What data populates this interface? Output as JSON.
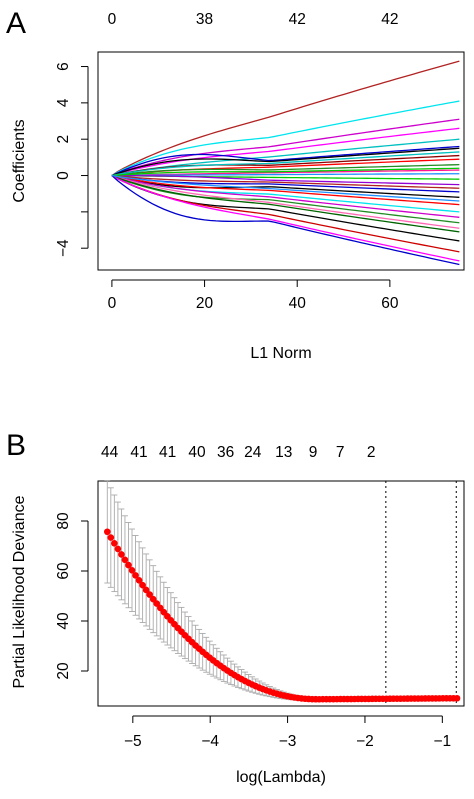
{
  "chart_data": [
    {
      "type": "line",
      "panel_label": "A",
      "xlabel": "L1 Norm",
      "ylabel": "Coefficients",
      "xlim": [
        -3,
        76
      ],
      "ylim": [
        -5.2,
        6.8
      ],
      "xticks": [
        0,
        20,
        40,
        60
      ],
      "yticks": [
        -4,
        -2,
        0,
        2,
        4,
        6
      ],
      "yticklabels": [
        "−4",
        "",
        "0",
        "2",
        "4",
        "6"
      ],
      "top_axis": {
        "positions": [
          0,
          20,
          40,
          60
        ],
        "labels": [
          "0",
          "38",
          "42",
          "42"
        ]
      },
      "grid": false,
      "legend": "none",
      "x_end": 75,
      "series": [
        {
          "color": "#b22222",
          "end": 6.3,
          "peak": 0.2
        },
        {
          "color": "#00e5ee",
          "end": 4.1,
          "peak": 0.5
        },
        {
          "color": "#cd00cd",
          "end": 3.1,
          "peak": 0.3
        },
        {
          "color": "#ff00ff",
          "end": 2.6,
          "peak": 0.2
        },
        {
          "color": "#00c0c0",
          "end": 2.0,
          "peak": 0.1
        },
        {
          "color": "#0000cd",
          "end": 1.6,
          "peak": 0.9
        },
        {
          "color": "#000000",
          "end": 1.5,
          "peak": 0.6
        },
        {
          "color": "#8b0000",
          "end": 1.1,
          "peak": 0.3
        },
        {
          "color": "#ff0000",
          "end": 0.9,
          "peak": 0.1
        },
        {
          "color": "#228b22",
          "end": 0.6,
          "peak": 0.2
        },
        {
          "color": "#ff1493",
          "end": 0.3,
          "peak": 0.0
        },
        {
          "color": "#1e90ff",
          "end": 0.1,
          "peak": 0.0
        },
        {
          "color": "#00cd00",
          "end": -0.2,
          "peak": 0.0
        },
        {
          "color": "#9400d3",
          "end": -0.5,
          "peak": 0.1
        },
        {
          "color": "#0000cd",
          "end": -0.9,
          "peak": -0.2
        },
        {
          "color": "#000000",
          "end": -1.2,
          "peak": -0.4
        },
        {
          "color": "#ff0000",
          "end": -1.6,
          "peak": -0.2
        },
        {
          "color": "#00e5ee",
          "end": -2.0,
          "peak": -0.3
        },
        {
          "color": "#cd00cd",
          "end": -2.3,
          "peak": -0.2
        },
        {
          "color": "#228b22",
          "end": -2.6,
          "peak": -0.5
        },
        {
          "color": "#ff69b4",
          "end": -2.9,
          "peak": -0.2
        },
        {
          "color": "#006400",
          "end": -3.1,
          "peak": -0.3
        },
        {
          "color": "#000000",
          "end": -3.6,
          "peak": -0.6
        },
        {
          "color": "#cd0000",
          "end": -4.2,
          "peak": -0.4
        },
        {
          "color": "#ff00ff",
          "end": -4.7,
          "peak": -0.3
        },
        {
          "color": "#0000cd",
          "end": -4.9,
          "peak": -1.2
        },
        {
          "color": "#00c0c0",
          "end": 1.3,
          "peak": 0.2
        },
        {
          "color": "#b22222",
          "end": -0.7,
          "peak": -0.1
        },
        {
          "color": "#00cd00",
          "end": 0.4,
          "peak": 0.1
        },
        {
          "color": "#1e90ff",
          "end": -1.4,
          "peak": -0.1
        }
      ]
    },
    {
      "type": "scatter",
      "panel_label": "B",
      "xlabel": "log(Lambda)",
      "ylabel": "Partial Likelihood Deviance",
      "xlim": [
        -5.45,
        -0.72
      ],
      "ylim": [
        6,
        96
      ],
      "xticks": [
        -5,
        -4,
        -3,
        -2,
        -1
      ],
      "xticklabels": [
        "−5",
        "−4",
        "−3",
        "−2",
        "−1"
      ],
      "yticks": [
        20,
        40,
        60,
        80
      ],
      "grid": false,
      "legend": "none",
      "top_axis": {
        "positions": [
          -5.3,
          -4.92,
          -4.55,
          -4.17,
          -3.8,
          -3.45,
          -3.05,
          -2.67,
          -2.32,
          -1.92
        ],
        "labels": [
          "44",
          "41",
          "41",
          "40",
          "36",
          "24",
          "13",
          "9",
          "7",
          "2"
        ]
      },
      "vlines": [
        -1.73,
        -0.82
      ],
      "point_color": "#ff0000",
      "errorbar_color": "#aaaaaa",
      "curve": {
        "x_start": -5.33,
        "x_end": -0.81,
        "n_points": 100,
        "y_start": 75.7,
        "y_floor": 8.7,
        "y_end": 9.1,
        "err_start": 20.5,
        "err_end": 0.6,
        "x_floor_reached": -2.6
      }
    }
  ]
}
